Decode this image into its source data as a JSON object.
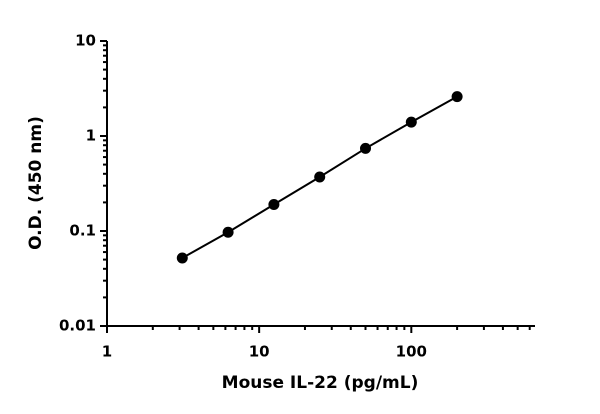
{
  "chart_data": {
    "type": "line",
    "xlabel": "Mouse IL-22 (pg/mL)",
    "ylabel": "O.D. (450 nm)",
    "xscale": "log",
    "yscale": "log",
    "xlim": [
      1,
      650
    ],
    "ylim": [
      0.01,
      10
    ],
    "xticks": [
      1,
      10,
      100
    ],
    "yticks": [
      0.01,
      0.1,
      1,
      10
    ],
    "markers": true,
    "series": [
      {
        "name": "Mouse IL-22",
        "color": "#000000",
        "x": [
          3.125,
          6.25,
          12.5,
          25,
          50,
          100,
          200
        ],
        "values": [
          0.052,
          0.097,
          0.19,
          0.37,
          0.74,
          1.4,
          2.6
        ]
      }
    ]
  }
}
